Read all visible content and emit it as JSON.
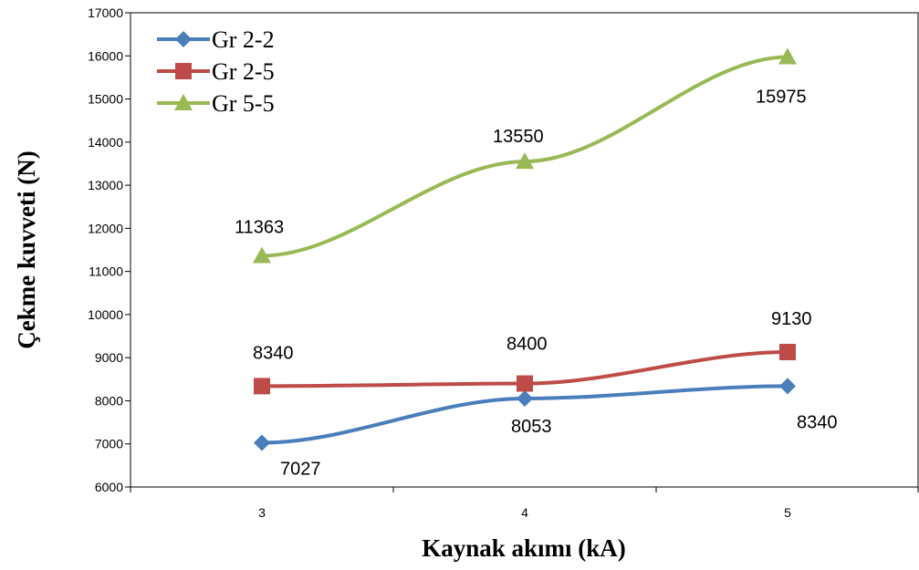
{
  "chart_data": {
    "type": "line",
    "x": [
      3,
      4,
      5
    ],
    "x_ticks": [
      3,
      4,
      5
    ],
    "xlabel": "Kaynak akımı (kA)",
    "ylabel": "Çekme kuvveti (N)",
    "ylim": [
      6000,
      17000
    ],
    "y_ticks": [
      6000,
      7000,
      8000,
      9000,
      10000,
      11000,
      12000,
      13000,
      14000,
      15000,
      16000,
      17000
    ],
    "grid": false,
    "legend": "top-left",
    "series": [
      {
        "name": "Gr 2-2",
        "values": [
          7027,
          8053,
          8340
        ],
        "labels": [
          "7027",
          "8053",
          "8340"
        ],
        "color": "#4a7ebb",
        "marker": "diamond"
      },
      {
        "name": "Gr 2-5",
        "values": [
          8340,
          8400,
          9130
        ],
        "labels": [
          "8340",
          "8400",
          "9130"
        ],
        "color": "#be4b48",
        "marker": "square"
      },
      {
        "name": "Gr 5-5",
        "values": [
          11363,
          13550,
          15975
        ],
        "labels": [
          "11363",
          "13550",
          "15975"
        ],
        "color": "#98b954",
        "marker": "triangle"
      }
    ]
  }
}
